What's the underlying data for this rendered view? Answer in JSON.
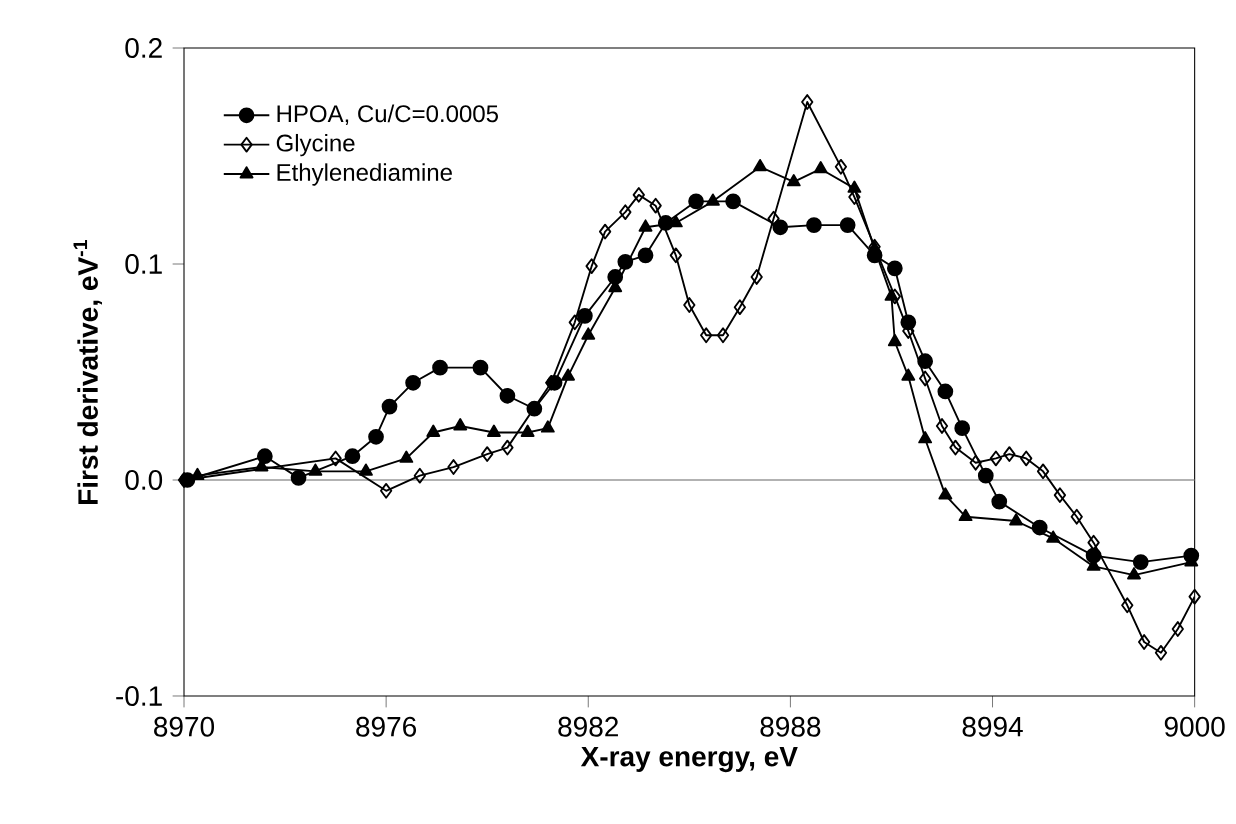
{
  "chart_data": {
    "type": "line",
    "xlabel": "X-ray energy, eV",
    "ylabel": "First derivative, eV$^{-1}$",
    "xlim": [
      8970,
      9000
    ],
    "xticks": [
      8970,
      8976,
      8982,
      8988,
      8994,
      9000
    ],
    "ylim": [
      -0.1,
      0.2
    ],
    "yticks": [
      {
        "value": -0.1,
        "label": "-0.1"
      },
      {
        "value": 0.0,
        "label": "0.0"
      },
      {
        "value": 0.1,
        "label": "0.1"
      },
      {
        "value": 0.2,
        "label": "0.2"
      }
    ],
    "legend": "top left",
    "grid": false,
    "ref_lines": [
      {
        "axis": "y",
        "value": 0,
        "color": "#999999"
      }
    ],
    "series": [
      {
        "name": "HPOA, Cu/C=0.0005",
        "color": "#000000",
        "marker": "circle",
        "x": [
          8970.1,
          8972.4,
          8973.4,
          8975.0,
          8975.7,
          8976.1,
          8976.8,
          8977.6,
          8978.8,
          8979.6,
          8980.4,
          8981.0,
          8981.9,
          8982.8,
          8983.1,
          8983.7,
          8984.3,
          8985.2,
          8986.3,
          8987.7,
          8988.7,
          8989.7,
          8990.5,
          8991.1,
          8991.5,
          8992.0,
          8992.6,
          8993.1,
          8993.8,
          8994.2,
          8995.4,
          8997.0,
          8998.4,
          8999.9
        ],
        "values": [
          0.0,
          0.011,
          0.001,
          0.011,
          0.02,
          0.034,
          0.045,
          0.052,
          0.052,
          0.039,
          0.033,
          0.045,
          0.076,
          0.094,
          0.101,
          0.104,
          0.119,
          0.129,
          0.129,
          0.117,
          0.118,
          0.118,
          0.104,
          0.098,
          0.073,
          0.055,
          0.041,
          0.024,
          0.002,
          -0.01,
          -0.022,
          -0.035,
          -0.038,
          -0.035
        ]
      },
      {
        "name": "Glycine",
        "color": "#000000",
        "marker": "diamond",
        "x": [
          8970,
          8974.5,
          8976.0,
          8977.0,
          8978.0,
          8979.0,
          8979.6,
          8980.9,
          8981.6,
          8982.1,
          8982.5,
          8983.1,
          8983.5,
          8984.0,
          8984.6,
          8985.0,
          8985.5,
          8986.0,
          8986.5,
          8987.0,
          8987.5,
          8988.5,
          8989.5,
          8989.9,
          8990.5,
          8991.1,
          8991.5,
          8992.0,
          8992.5,
          8992.9,
          8993.5,
          8994.1,
          8994.5,
          8995.0,
          8995.5,
          8996.0,
          8996.5,
          8997.0,
          8998.0,
          8998.5,
          8999.0,
          8999.5,
          9000.0
        ],
        "values": [
          0.0,
          0.01,
          -0.005,
          0.002,
          0.006,
          0.012,
          0.015,
          0.045,
          0.073,
          0.099,
          0.115,
          0.124,
          0.132,
          0.127,
          0.104,
          0.081,
          0.067,
          0.067,
          0.08,
          0.094,
          0.121,
          0.175,
          0.145,
          0.131,
          0.108,
          0.085,
          0.069,
          0.047,
          0.025,
          0.015,
          0.008,
          0.01,
          0.012,
          0.01,
          0.004,
          -0.007,
          -0.017,
          -0.029,
          -0.058,
          -0.075,
          -0.08,
          -0.069,
          -0.054
        ]
      },
      {
        "name": "Ethylenediamine",
        "color": "#000000",
        "marker": "triangle",
        "x": [
          8970.4,
          8972.3,
          8973.9,
          8975.4,
          8976.6,
          8977.4,
          8978.2,
          8979.2,
          8980.2,
          8980.8,
          8981.4,
          8982.0,
          8982.8,
          8983.7,
          8984.6,
          8985.7,
          8987.1,
          8988.1,
          8988.9,
          8989.9,
          8990.5,
          8991.0,
          8991.1,
          8991.5,
          8992.0,
          8992.6,
          8993.2,
          8994.7,
          8995.8,
          8997.0,
          8998.2,
          8999.9
        ],
        "values": [
          0.002,
          0.006,
          0.004,
          0.004,
          0.01,
          0.022,
          0.025,
          0.022,
          0.022,
          0.024,
          0.048,
          0.067,
          0.089,
          0.117,
          0.119,
          0.129,
          0.145,
          0.138,
          0.144,
          0.135,
          0.107,
          0.085,
          0.064,
          0.048,
          0.019,
          -0.007,
          -0.017,
          -0.019,
          -0.027,
          -0.04,
          -0.044,
          -0.038
        ]
      }
    ]
  }
}
